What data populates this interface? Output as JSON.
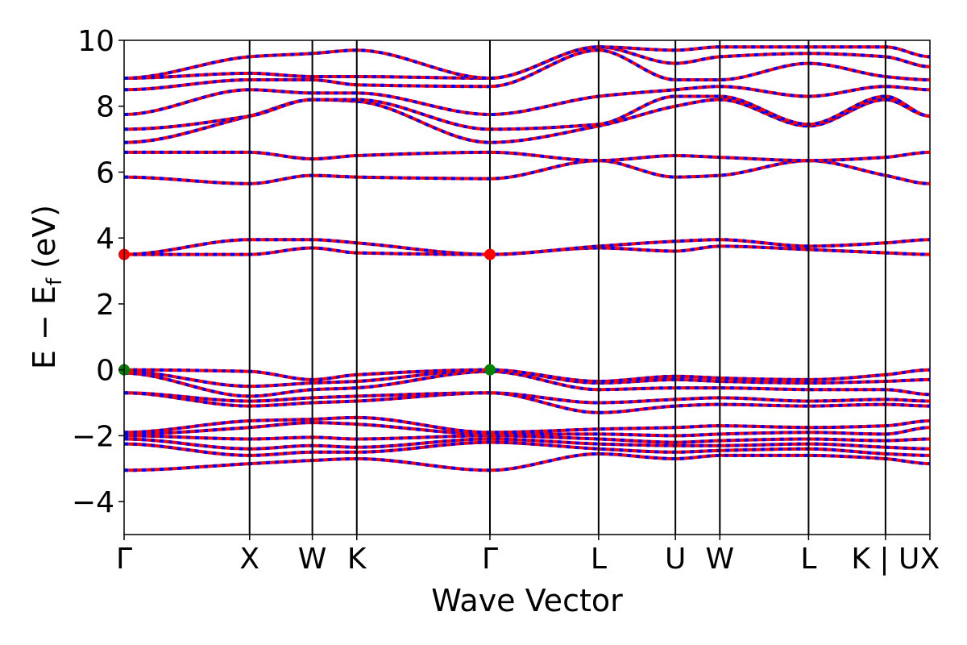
{
  "chart_data": {
    "type": "line",
    "xlabel": "Wave Vector",
    "ylabel_main": "E − E",
    "ylabel_sub": "f",
    "ylabel_unit": " (eV)",
    "ylim": [
      -5,
      10
    ],
    "yticks": [
      {
        "value": -4,
        "label": "−4"
      },
      {
        "value": -2,
        "label": "−2"
      },
      {
        "value": 0,
        "label": "0"
      },
      {
        "value": 2,
        "label": "2"
      },
      {
        "value": 4,
        "label": "4"
      },
      {
        "value": 6,
        "label": "6"
      },
      {
        "value": 8,
        "label": "8"
      },
      {
        "value": 10,
        "label": "10"
      }
    ],
    "kpoints": [
      {
        "label": "Γ",
        "x": 0.0
      },
      {
        "label": "X",
        "x": 1.0
      },
      {
        "label": "W",
        "x": 1.5
      },
      {
        "label": "K",
        "x": 1.854
      },
      {
        "label": "Γ",
        "x": 2.915
      },
      {
        "label": "L",
        "x": 3.781
      },
      {
        "label": "U",
        "x": 4.393
      },
      {
        "label": "W",
        "x": 4.747
      },
      {
        "label": "L",
        "x": 5.454
      },
      {
        "label": "K | U",
        "x": 6.067
      },
      {
        "label": "X",
        "x": 6.421
      }
    ],
    "xlim": [
      0,
      6.421
    ],
    "colors": {
      "spin_up": "#ff0000",
      "spin_down": "#0000ff",
      "vbm": "#008000",
      "cbm": "#ff0000",
      "kline": "#000000"
    },
    "extrema": [
      {
        "type": "VBM",
        "x": 0.0,
        "y": 0.0
      },
      {
        "type": "VBM",
        "x": 2.915,
        "y": 0.0
      },
      {
        "type": "CBM",
        "x": 0.0,
        "y": 3.5
      },
      {
        "type": "CBM",
        "x": 2.915,
        "y": 3.5
      }
    ],
    "bands": [
      {
        "name": "band-1",
        "energies": [
          -3.05,
          -2.85,
          -2.75,
          -2.7,
          -3.05,
          -2.55,
          -2.7,
          -2.6,
          -2.6,
          -2.7,
          -2.85
        ]
      },
      {
        "name": "band-2",
        "energies": [
          -2.25,
          -2.6,
          -2.5,
          -2.5,
          -2.2,
          -2.4,
          -2.5,
          -2.45,
          -2.4,
          -2.55,
          -2.6
        ]
      },
      {
        "name": "band-3",
        "energies": [
          -2.1,
          -2.4,
          -2.3,
          -2.35,
          -2.1,
          -2.25,
          -2.3,
          -2.3,
          -2.25,
          -2.35,
          -2.4
        ]
      },
      {
        "name": "band-4",
        "energies": [
          -2.0,
          -2.1,
          -2.05,
          -2.1,
          -2.0,
          -2.1,
          -2.2,
          -2.15,
          -2.1,
          -2.15,
          -2.1
        ]
      },
      {
        "name": "band-5",
        "energies": [
          -1.95,
          -1.75,
          -1.6,
          -1.65,
          -1.95,
          -1.95,
          -2.0,
          -1.95,
          -1.9,
          -1.95,
          -1.75
        ]
      },
      {
        "name": "band-6",
        "energies": [
          -1.9,
          -1.55,
          -1.5,
          -1.45,
          -1.9,
          -1.8,
          -1.75,
          -1.7,
          -1.75,
          -1.7,
          -1.55
        ]
      },
      {
        "name": "band-7",
        "energies": [
          -0.7,
          -1.1,
          -1.0,
          -0.95,
          -0.7,
          -1.3,
          -1.1,
          -1.05,
          -1.1,
          -1.05,
          -1.1
        ]
      },
      {
        "name": "band-8",
        "energies": [
          -0.7,
          -0.95,
          -0.85,
          -0.8,
          -0.7,
          -1.0,
          -0.9,
          -0.85,
          -0.95,
          -0.9,
          -0.95
        ]
      },
      {
        "name": "band-9",
        "energies": [
          -0.1,
          -0.8,
          -0.6,
          -0.55,
          -0.05,
          -0.6,
          -0.55,
          -0.55,
          -0.6,
          -0.6,
          -0.75
        ]
      },
      {
        "name": "band-10",
        "energies": [
          -0.05,
          -0.5,
          -0.4,
          -0.35,
          0.0,
          -0.4,
          -0.3,
          -0.35,
          -0.4,
          -0.35,
          -0.3
        ]
      },
      {
        "name": "band-11",
        "energies": [
          0.0,
          -0.05,
          -0.3,
          -0.15,
          0.0,
          -0.35,
          -0.2,
          -0.25,
          -0.3,
          -0.15,
          0.0
        ]
      },
      {
        "name": "band-12",
        "energies": [
          3.5,
          3.5,
          3.7,
          3.55,
          3.5,
          3.7,
          3.6,
          3.75,
          3.65,
          3.55,
          3.5
        ]
      },
      {
        "name": "band-13",
        "energies": [
          3.5,
          3.95,
          3.95,
          3.85,
          3.5,
          3.75,
          3.9,
          3.95,
          3.75,
          3.85,
          3.95
        ]
      },
      {
        "name": "band-14",
        "energies": [
          5.85,
          5.65,
          5.9,
          5.85,
          5.8,
          6.35,
          5.85,
          5.9,
          6.35,
          5.9,
          5.65
        ]
      },
      {
        "name": "band-15",
        "energies": [
          6.6,
          6.6,
          6.4,
          6.5,
          6.6,
          6.35,
          6.5,
          6.45,
          6.35,
          6.45,
          6.6
        ]
      },
      {
        "name": "band-16",
        "energies": [
          6.9,
          7.7,
          8.2,
          8.15,
          6.9,
          7.4,
          8.0,
          8.2,
          7.4,
          8.2,
          7.7
        ]
      },
      {
        "name": "band-17",
        "energies": [
          7.3,
          7.7,
          8.2,
          8.2,
          7.3,
          7.45,
          8.3,
          8.3,
          7.45,
          8.3,
          7.7
        ]
      },
      {
        "name": "band-18",
        "energies": [
          7.75,
          8.5,
          8.4,
          8.4,
          7.75,
          8.3,
          8.5,
          8.6,
          8.3,
          8.6,
          8.5
        ]
      },
      {
        "name": "band-19",
        "energies": [
          8.5,
          8.8,
          8.8,
          8.65,
          8.6,
          9.7,
          8.8,
          8.8,
          9.3,
          8.9,
          8.8
        ]
      },
      {
        "name": "band-20",
        "energies": [
          8.85,
          9.0,
          8.9,
          8.9,
          8.85,
          9.8,
          9.3,
          9.5,
          9.6,
          9.5,
          9.2
        ]
      },
      {
        "name": "band-21",
        "energies": [
          8.85,
          9.5,
          9.6,
          9.7,
          8.85,
          9.8,
          9.7,
          9.8,
          9.8,
          9.8,
          9.5
        ]
      }
    ]
  }
}
